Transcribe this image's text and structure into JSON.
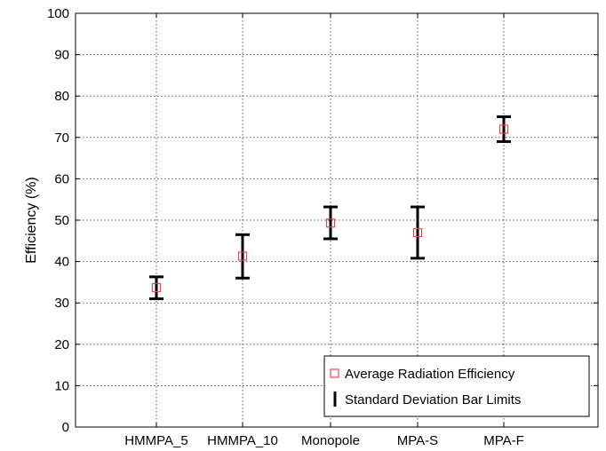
{
  "chart_data": {
    "type": "errorbar",
    "categories": [
      "HMMPA_5",
      "HMMPA_10",
      "Monopole",
      "MPA-S",
      "MPA-F"
    ],
    "series": [
      {
        "name": "Average Radiation Efficiency",
        "marker": "square",
        "color": "#e8474f",
        "values": [
          33.7,
          41.3,
          49.3,
          47.0,
          72.0
        ]
      },
      {
        "name": "Standard Deviation Bar Limits",
        "color": "#000000",
        "lower": [
          31.0,
          36.0,
          45.5,
          40.8,
          69.0
        ],
        "upper": [
          36.3,
          46.5,
          53.2,
          53.2,
          75.0
        ]
      }
    ],
    "ylabel": "Efficiency (%)",
    "xlabel": "",
    "title": "",
    "ylim": [
      0,
      100
    ],
    "yticks": [
      0,
      10,
      20,
      30,
      40,
      50,
      60,
      70,
      80,
      90,
      100
    ],
    "grid": true,
    "legend_position": "bottom-right"
  }
}
